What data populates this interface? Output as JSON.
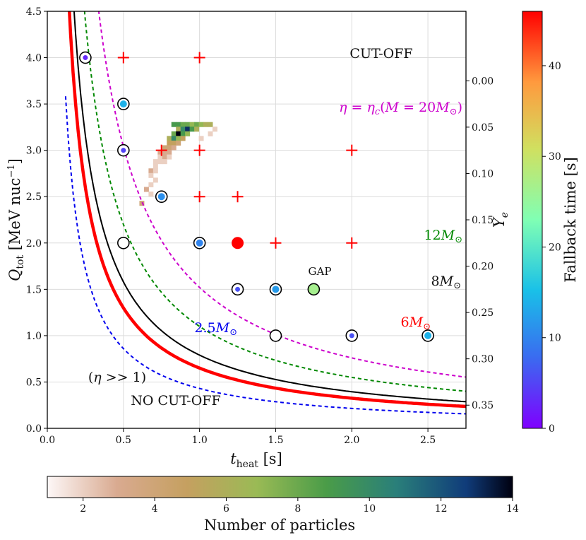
{
  "chart_data": {
    "type": "scatter",
    "xlabel": "t_heat [s]",
    "ylabel": "Q_tot [MeV nuc^-1]",
    "y2label": "Y_e",
    "xlim": [
      0.0,
      2.75
    ],
    "ylim": [
      0.0,
      4.5
    ],
    "xticks": [
      "0.0",
      "0.5",
      "1.0",
      "1.5",
      "2.0",
      "2.5"
    ],
    "yticks": [
      "0.0",
      "0.5",
      "1.0",
      "1.5",
      "2.0",
      "2.5",
      "3.0",
      "3.5",
      "4.0",
      "4.5"
    ],
    "ye_ticks": [
      {
        "q": 3.75,
        "label": "0.00"
      },
      {
        "q": 3.25,
        "label": "0.05"
      },
      {
        "q": 2.75,
        "label": "0.10"
      },
      {
        "q": 2.25,
        "label": "0.15"
      },
      {
        "q": 1.75,
        "label": "0.20"
      },
      {
        "q": 1.25,
        "label": "0.25"
      },
      {
        "q": 0.75,
        "label": "0.30"
      },
      {
        "q": 0.25,
        "label": "0.35"
      }
    ],
    "grid": true,
    "curves": [
      {
        "label": "2.5M⊙",
        "color": "#0000ee",
        "style": "dashed",
        "k": 0.43,
        "linewidth": 2
      },
      {
        "label": "6M⊙",
        "color": "#ff0000",
        "style": "solid",
        "k": 0.65,
        "linewidth": 4.5
      },
      {
        "label": "8M⊙",
        "color": "#000000",
        "style": "solid",
        "k": 0.79,
        "linewidth": 2
      },
      {
        "label": "12M⊙",
        "color": "#008800",
        "style": "dashed",
        "k": 1.1,
        "linewidth": 2
      },
      {
        "label": "η = η_c(M = 20M⊙)",
        "color": "#cc00cc",
        "style": "dashed",
        "k": 1.52,
        "linewidth": 2
      }
    ],
    "cutoff_points": [
      {
        "t": 0.5,
        "q": 4.0
      },
      {
        "t": 1.0,
        "q": 4.0
      },
      {
        "t": 0.75,
        "q": 3.0
      },
      {
        "t": 1.0,
        "q": 3.0
      },
      {
        "t": 2.0,
        "q": 3.0
      },
      {
        "t": 1.0,
        "q": 2.5
      },
      {
        "t": 1.25,
        "q": 2.5
      },
      {
        "t": 1.5,
        "q": 2.0
      },
      {
        "t": 2.0,
        "q": 2.0
      }
    ],
    "fallback_points": [
      {
        "t": 0.25,
        "q": 4.0,
        "fallback": 3
      },
      {
        "t": 0.5,
        "q": 3.5,
        "fallback": 14
      },
      {
        "t": 0.5,
        "q": 3.0,
        "fallback": 5
      },
      {
        "t": 0.75,
        "q": 2.5,
        "fallback": 11
      },
      {
        "t": 0.5,
        "q": 2.0,
        "fallback": null
      },
      {
        "t": 1.0,
        "q": 2.0,
        "fallback": 10
      },
      {
        "t": 1.25,
        "q": 1.5,
        "fallback": 6
      },
      {
        "t": 1.5,
        "q": 1.5,
        "fallback": 12
      },
      {
        "t": 1.5,
        "q": 1.0,
        "fallback": null
      },
      {
        "t": 2.0,
        "q": 1.0,
        "fallback": 6
      },
      {
        "t": 2.5,
        "q": 1.0,
        "fallback": 14
      }
    ],
    "special_points": [
      {
        "t": 1.25,
        "q": 2.0,
        "color": "#ff0000"
      },
      {
        "t": 1.75,
        "q": 1.5,
        "color": "#a6ef8f",
        "label": "GAP"
      }
    ],
    "histogram_cells": [
      {
        "t": 0.83,
        "q": 3.28,
        "n": 9
      },
      {
        "t": 0.86,
        "q": 3.28,
        "n": 9
      },
      {
        "t": 0.89,
        "q": 3.28,
        "n": 8
      },
      {
        "t": 0.92,
        "q": 3.28,
        "n": 8
      },
      {
        "t": 0.95,
        "q": 3.28,
        "n": 7
      },
      {
        "t": 0.98,
        "q": 3.28,
        "n": 8
      },
      {
        "t": 1.01,
        "q": 3.28,
        "n": 7
      },
      {
        "t": 1.04,
        "q": 3.28,
        "n": 6
      },
      {
        "t": 1.07,
        "q": 3.28,
        "n": 6
      },
      {
        "t": 0.86,
        "q": 3.23,
        "n": 6
      },
      {
        "t": 0.89,
        "q": 3.23,
        "n": 10
      },
      {
        "t": 0.92,
        "q": 3.23,
        "n": 13
      },
      {
        "t": 0.95,
        "q": 3.23,
        "n": 9
      },
      {
        "t": 0.98,
        "q": 3.23,
        "n": 6
      },
      {
        "t": 0.83,
        "q": 3.18,
        "n": 8
      },
      {
        "t": 0.86,
        "q": 3.18,
        "n": 14
      },
      {
        "t": 0.89,
        "q": 3.18,
        "n": 9
      },
      {
        "t": 0.92,
        "q": 3.18,
        "n": 7
      },
      {
        "t": 0.8,
        "q": 3.13,
        "n": 6
      },
      {
        "t": 0.83,
        "q": 3.13,
        "n": 10
      },
      {
        "t": 0.86,
        "q": 3.13,
        "n": 7
      },
      {
        "t": 0.89,
        "q": 3.13,
        "n": 5
      },
      {
        "t": 0.8,
        "q": 3.08,
        "n": 5
      },
      {
        "t": 0.83,
        "q": 3.08,
        "n": 5
      },
      {
        "t": 0.86,
        "q": 3.08,
        "n": 4
      },
      {
        "t": 0.77,
        "q": 3.03,
        "n": 4
      },
      {
        "t": 0.8,
        "q": 3.03,
        "n": 4
      },
      {
        "t": 0.83,
        "q": 3.03,
        "n": 3
      },
      {
        "t": 0.74,
        "q": 2.98,
        "n": 3
      },
      {
        "t": 0.77,
        "q": 2.98,
        "n": 3
      },
      {
        "t": 0.8,
        "q": 2.98,
        "n": 3
      },
      {
        "t": 0.74,
        "q": 2.93,
        "n": 2
      },
      {
        "t": 0.77,
        "q": 2.93,
        "n": 3
      },
      {
        "t": 0.8,
        "q": 2.93,
        "n": 2
      },
      {
        "t": 0.71,
        "q": 2.88,
        "n": 2
      },
      {
        "t": 0.74,
        "q": 2.88,
        "n": 2
      },
      {
        "t": 0.77,
        "q": 2.88,
        "n": 2
      },
      {
        "t": 0.71,
        "q": 2.83,
        "n": 2
      },
      {
        "t": 0.68,
        "q": 2.78,
        "n": 3
      },
      {
        "t": 0.71,
        "q": 2.78,
        "n": 2
      },
      {
        "t": 0.68,
        "q": 2.73,
        "n": 2
      },
      {
        "t": 0.71,
        "q": 2.68,
        "n": 2
      },
      {
        "t": 0.68,
        "q": 2.63,
        "n": 2
      },
      {
        "t": 0.65,
        "q": 2.58,
        "n": 3
      },
      {
        "t": 0.68,
        "q": 2.53,
        "n": 2
      },
      {
        "t": 0.62,
        "q": 2.43,
        "n": 4
      },
      {
        "t": 1.1,
        "q": 3.23,
        "n": 2
      },
      {
        "t": 1.07,
        "q": 3.18,
        "n": 2
      },
      {
        "t": 1.01,
        "q": 3.13,
        "n": 2
      }
    ],
    "annotations": [
      "CUT-OFF",
      "GAP",
      "(η >> 1)",
      "NO CUT-OFF"
    ],
    "colorbar_fallback": {
      "label": "Fallback time [s]",
      "min": 0,
      "max": 46,
      "ticks": [
        "0",
        "10",
        "20",
        "30",
        "40"
      ]
    },
    "colorbar_particles": {
      "label": "Number of particles",
      "min": 1,
      "max": 14,
      "ticks": [
        "2",
        "4",
        "6",
        "8",
        "10",
        "12",
        "14"
      ]
    }
  }
}
